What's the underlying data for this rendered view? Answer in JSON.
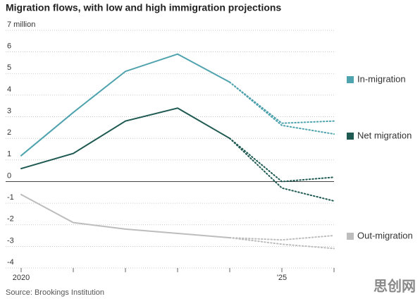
{
  "chart_data": {
    "type": "line",
    "title": "Migration flows, with low and high immigration projections",
    "categories": [
      "2020",
      null,
      null,
      null,
      null,
      "'25",
      null
    ],
    "ylim": [
      -4,
      7
    ],
    "yticks": [
      {
        "value": 7,
        "label": "7 million"
      },
      6,
      5,
      4,
      3,
      2,
      1,
      0,
      -1,
      -2,
      -3,
      -4
    ],
    "grid": true,
    "series": [
      {
        "name": "In-migration",
        "color": "#4fa3ae",
        "values": [
          1.2,
          3.2,
          5.1,
          5.9,
          4.6,
          null,
          null
        ],
        "high_projection": [
          null,
          null,
          null,
          null,
          4.6,
          2.7,
          2.8
        ],
        "low_projection": [
          null,
          null,
          null,
          null,
          4.6,
          2.6,
          2.2
        ]
      },
      {
        "name": "Net migration",
        "color": "#1f5a52",
        "values": [
          0.6,
          1.3,
          2.8,
          3.4,
          2.0,
          null,
          null
        ],
        "high_projection": [
          null,
          null,
          null,
          null,
          2.0,
          0.0,
          0.2
        ],
        "low_projection": [
          null,
          null,
          null,
          null,
          2.0,
          -0.3,
          -0.9
        ]
      },
      {
        "name": "Out-migration",
        "color": "#bdbdbd",
        "values": [
          -0.6,
          -1.9,
          -2.2,
          -2.4,
          -2.6,
          null,
          null
        ],
        "high_projection": [
          null,
          null,
          null,
          null,
          -2.6,
          -2.7,
          -2.5
        ],
        "low_projection": [
          null,
          null,
          null,
          null,
          -2.6,
          -2.9,
          -3.1
        ]
      }
    ],
    "source": "Source: Brookings Institution",
    "watermark": "思创网"
  }
}
